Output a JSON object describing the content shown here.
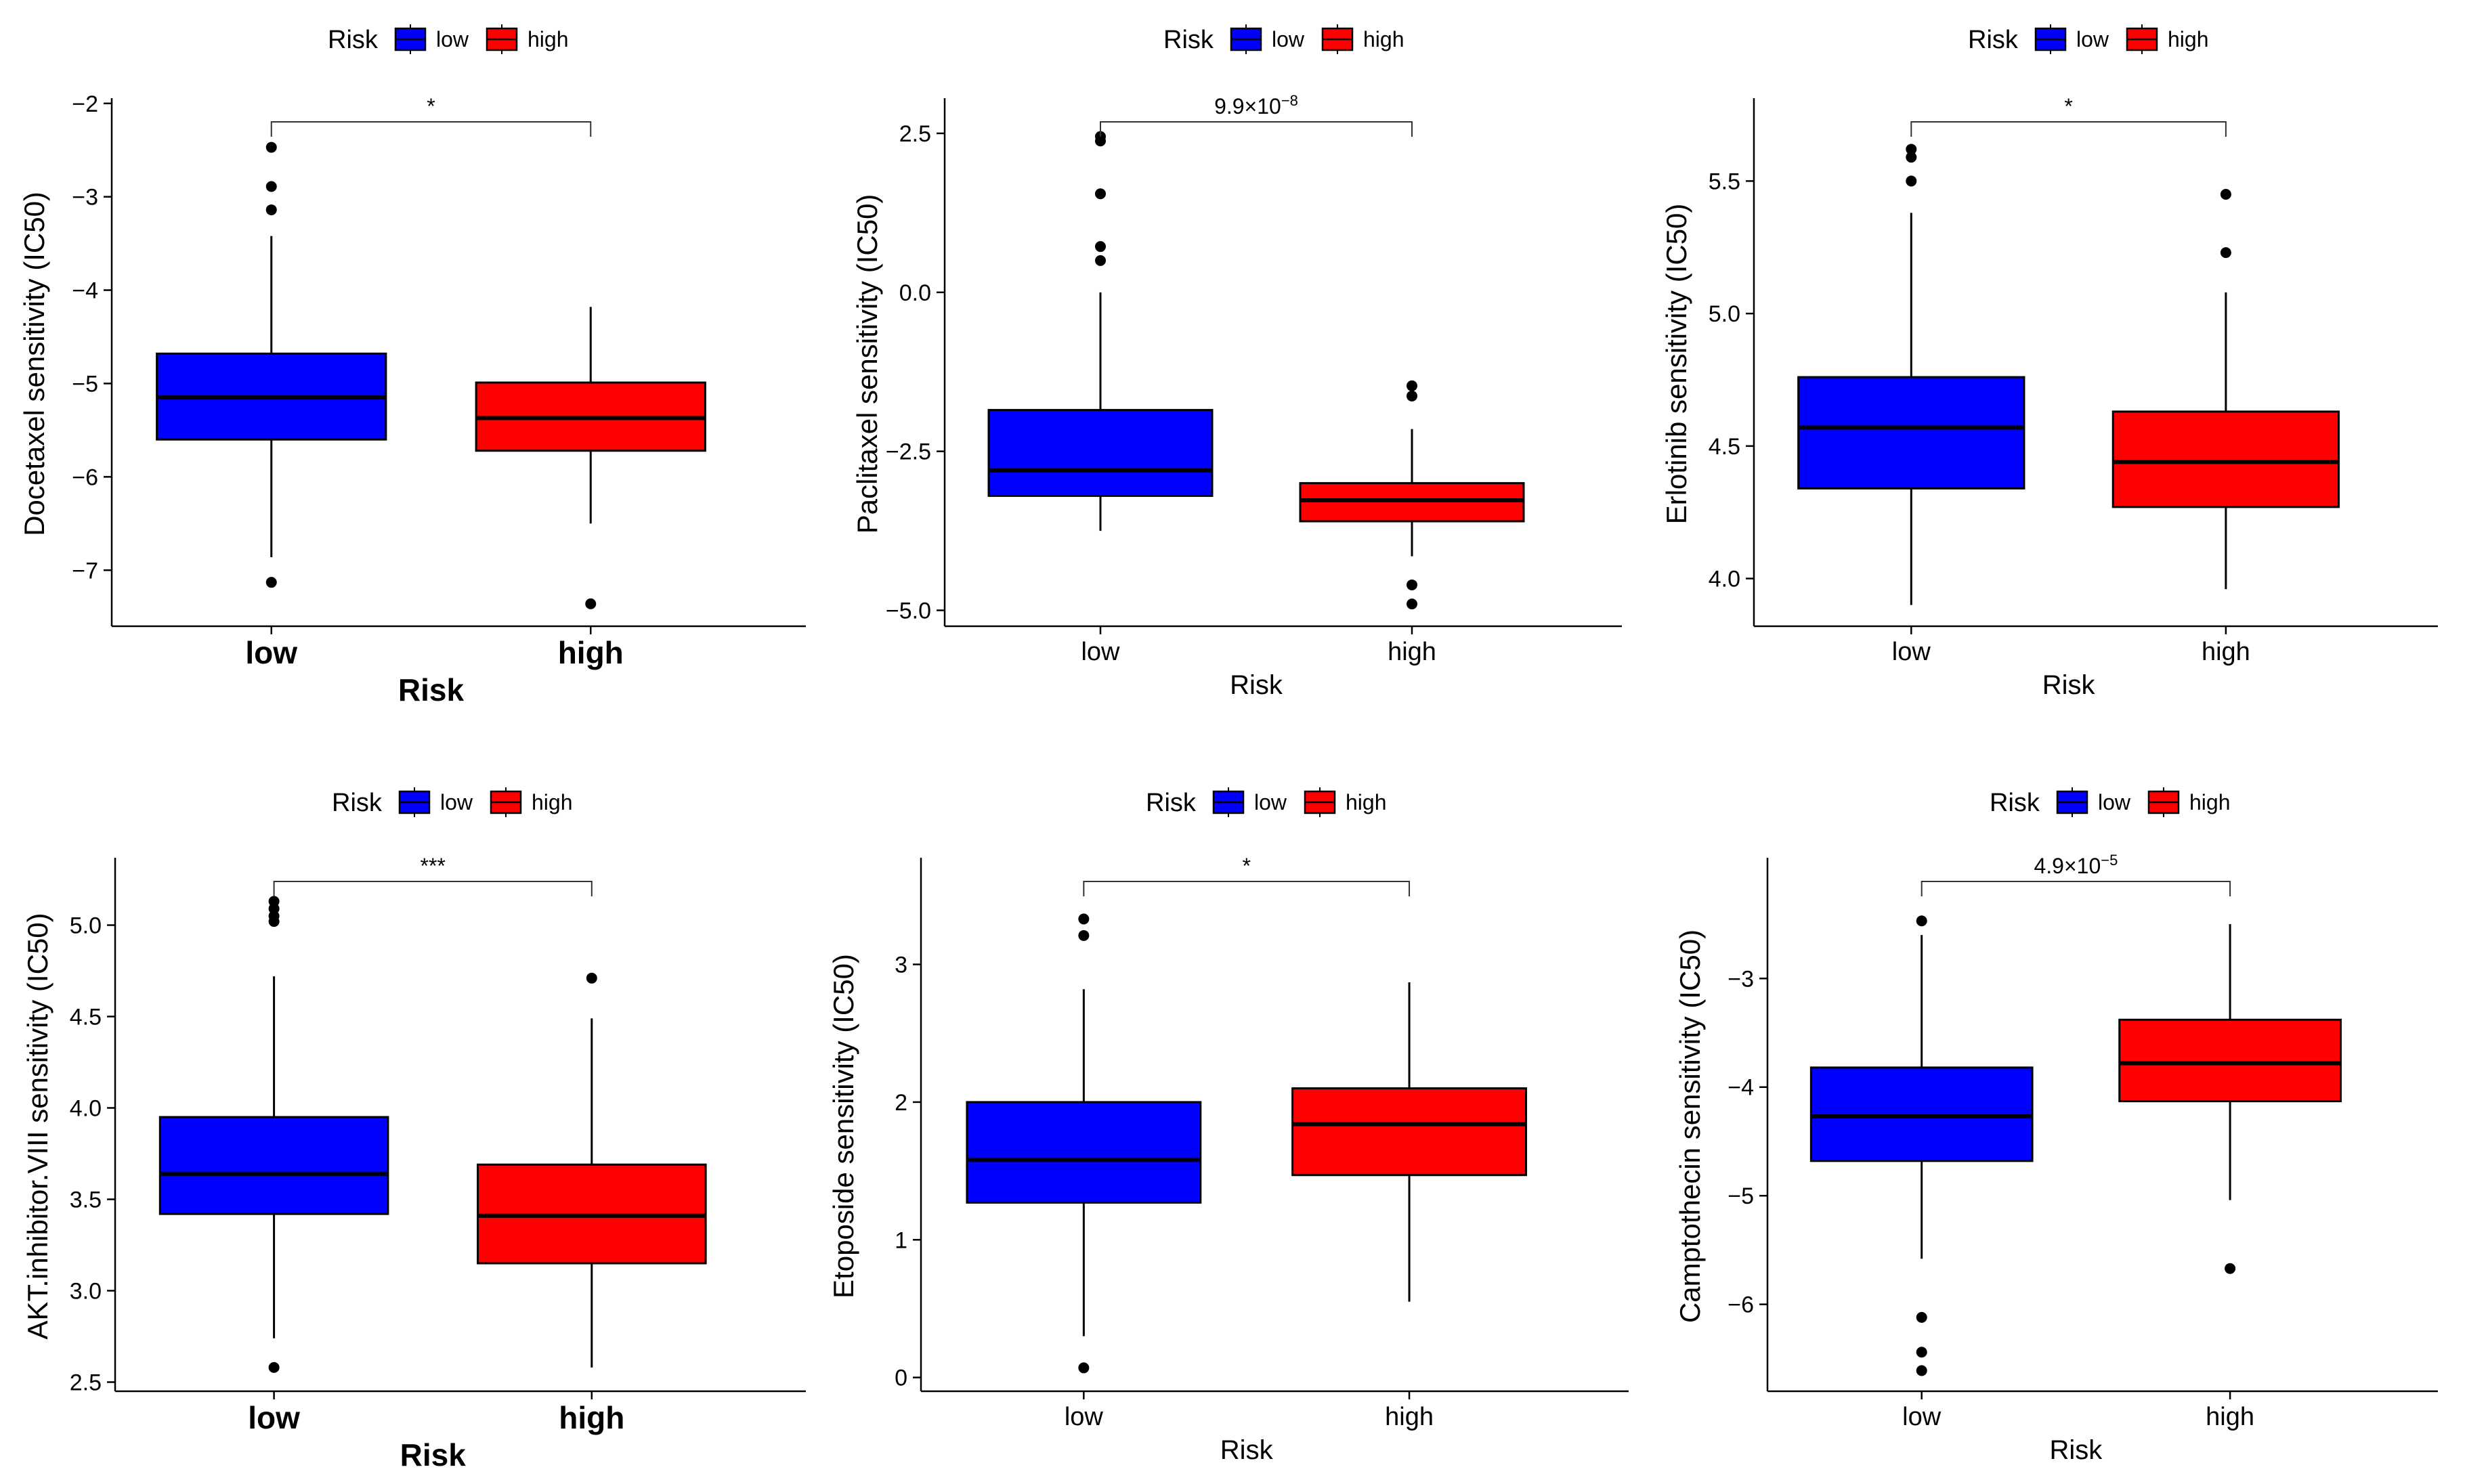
{
  "chart_data": [
    {
      "type": "box",
      "ylabel": "Docetaxel sensitivity (IC50)",
      "xlabel": "Risk",
      "legend_title": "Risk",
      "legend_position": "top",
      "categories": [
        "low",
        "high"
      ],
      "yticks": [
        -2,
        -3,
        -4,
        -5,
        -6,
        -7
      ],
      "ytick_labels": [
        "−2",
        "−3",
        "−4",
        "−5",
        "−6",
        "−7"
      ],
      "ylim": [
        -7.6,
        -1.98
      ],
      "significance": "*",
      "large_labels": true,
      "series": [
        {
          "name": "low",
          "color": "#0000ff",
          "whisker_low": -6.86,
          "q1": -5.6,
          "median": -5.15,
          "q3": -4.68,
          "whisker_high": -3.42,
          "outliers": [
            -2.47,
            -2.89,
            -3.14,
            -7.13
          ]
        },
        {
          "name": "high",
          "color": "#ff0000",
          "whisker_low": -6.5,
          "q1": -5.72,
          "median": -5.37,
          "q3": -4.99,
          "whisker_high": -4.18,
          "outliers": [
            -7.36
          ]
        }
      ]
    },
    {
      "type": "box",
      "ylabel": "Paclitaxel sensitivity (IC50)",
      "xlabel": "Risk",
      "legend_title": "Risk",
      "legend_position": "top",
      "categories": [
        "low",
        "high"
      ],
      "yticks": [
        2.5,
        0.0,
        -2.5,
        -5.0
      ],
      "ytick_labels": [
        "2.5",
        "0.0",
        "−2.5",
        "−5.0"
      ],
      "ylim": [
        -5.25,
        3.0
      ],
      "significance": "9.9×10",
      "significance_exp": "−8",
      "large_labels": false,
      "series": [
        {
          "name": "low",
          "color": "#0000ff",
          "whisker_low": -3.75,
          "q1": -3.2,
          "median": -2.8,
          "q3": -1.85,
          "whisker_high": 0.0,
          "outliers": [
            2.45,
            2.38,
            1.55,
            0.72,
            0.5
          ]
        },
        {
          "name": "high",
          "color": "#ff0000",
          "whisker_low": -4.15,
          "q1": -3.6,
          "median": -3.27,
          "q3": -3.0,
          "whisker_high": -2.15,
          "outliers": [
            -1.47,
            -1.63,
            -4.6,
            -4.9
          ]
        }
      ]
    },
    {
      "type": "box",
      "ylabel": "Erlotinib sensitivity (IC50)",
      "xlabel": "Risk",
      "legend_title": "Risk",
      "legend_position": "top",
      "categories": [
        "low",
        "high"
      ],
      "yticks": [
        5.5,
        5.0,
        4.5,
        4.0
      ],
      "ytick_labels": [
        "5.5",
        "5.0",
        "4.5",
        "4.0"
      ],
      "ylim": [
        3.82,
        5.8
      ],
      "significance": "*",
      "large_labels": false,
      "series": [
        {
          "name": "low",
          "color": "#0000ff",
          "whisker_low": 3.9,
          "q1": 4.34,
          "median": 4.57,
          "q3": 4.76,
          "whisker_high": 5.38,
          "outliers": [
            5.62,
            5.59,
            5.5
          ]
        },
        {
          "name": "high",
          "color": "#ff0000",
          "whisker_low": 3.96,
          "q1": 4.27,
          "median": 4.44,
          "q3": 4.63,
          "whisker_high": 5.08,
          "outliers": [
            5.45,
            5.23
          ]
        }
      ]
    },
    {
      "type": "box",
      "ylabel": "AKT.inhibitor.VIII sensitivity (IC50)",
      "xlabel": "Risk",
      "legend_title": "Risk",
      "legend_position": "top",
      "categories": [
        "low",
        "high"
      ],
      "yticks": [
        5.0,
        4.5,
        4.0,
        3.5,
        3.0,
        2.5
      ],
      "ytick_labels": [
        "5.0",
        "4.5",
        "4.0",
        "3.5",
        "3.0",
        "2.5"
      ],
      "ylim": [
        2.45,
        5.35
      ],
      "significance": "***",
      "large_labels": true,
      "series": [
        {
          "name": "low",
          "color": "#0000ff",
          "whisker_low": 2.74,
          "q1": 3.42,
          "median": 3.64,
          "q3": 3.95,
          "whisker_high": 4.72,
          "outliers": [
            5.13,
            5.09,
            5.05,
            5.02,
            2.58
          ]
        },
        {
          "name": "high",
          "color": "#ff0000",
          "whisker_low": 2.58,
          "q1": 3.15,
          "median": 3.41,
          "q3": 3.69,
          "whisker_high": 4.49,
          "outliers": [
            4.71
          ]
        }
      ]
    },
    {
      "type": "box",
      "ylabel": "Etoposide sensitivity (IC50)",
      "xlabel": "Risk",
      "legend_title": "Risk",
      "legend_position": "top",
      "categories": [
        "low",
        "high"
      ],
      "yticks": [
        3,
        2,
        1,
        0
      ],
      "ytick_labels": [
        "3",
        "2",
        "1",
        "0"
      ],
      "ylim": [
        -0.1,
        3.75
      ],
      "significance": "*",
      "large_labels": false,
      "series": [
        {
          "name": "low",
          "color": "#0000ff",
          "whisker_low": 0.3,
          "q1": 1.27,
          "median": 1.58,
          "q3": 2.0,
          "whisker_high": 2.82,
          "outliers": [
            3.33,
            3.21,
            0.07
          ]
        },
        {
          "name": "high",
          "color": "#ff0000",
          "whisker_low": 0.55,
          "q1": 1.47,
          "median": 1.84,
          "q3": 2.1,
          "whisker_high": 2.87,
          "outliers": []
        }
      ]
    },
    {
      "type": "box",
      "ylabel": "Camptothecin sensitivity (IC50)",
      "xlabel": "Risk",
      "legend_title": "Risk",
      "legend_position": "top",
      "categories": [
        "low",
        "high"
      ],
      "yticks": [
        -3,
        -4,
        -5,
        -6
      ],
      "ytick_labels": [
        "−3",
        "−4",
        "−5",
        "−6"
      ],
      "ylim": [
        -6.8,
        -1.92
      ],
      "significance": "4.9×10",
      "significance_exp": "−5",
      "large_labels": false,
      "series": [
        {
          "name": "low",
          "color": "#0000ff",
          "whisker_low": -5.58,
          "q1": -4.68,
          "median": -4.27,
          "q3": -3.82,
          "whisker_high": -2.6,
          "outliers": [
            -2.47,
            -6.12,
            -6.44,
            -6.61
          ]
        },
        {
          "name": "high",
          "color": "#ff0000",
          "whisker_low": -5.04,
          "q1": -4.13,
          "median": -3.78,
          "q3": -3.38,
          "whisker_high": -2.5,
          "outliers": [
            -5.67
          ]
        }
      ]
    }
  ]
}
